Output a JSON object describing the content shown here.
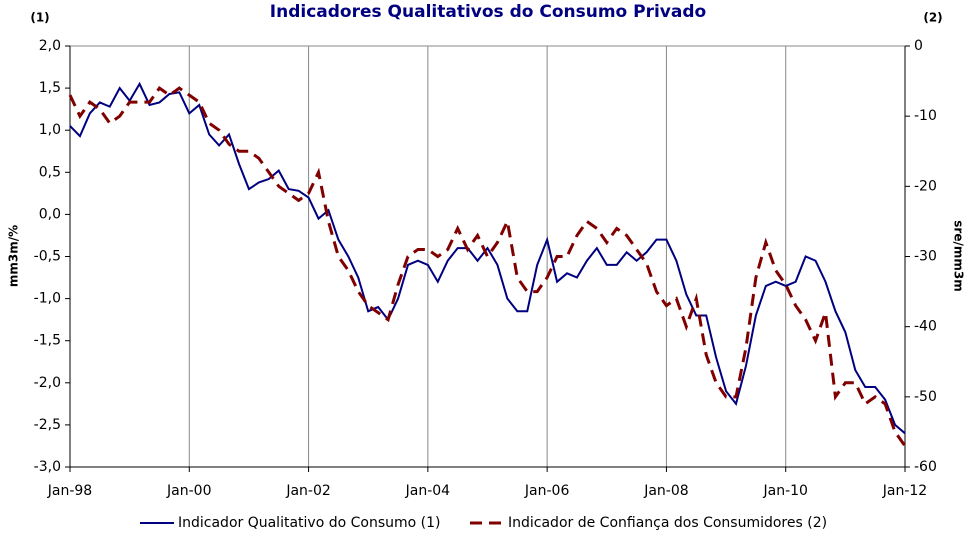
{
  "chart_data": {
    "type": "line",
    "title": "Indicadores Qualitativos do Consumo Privado",
    "left_axis_note": "(1)",
    "right_axis_note": "(2)",
    "ylabel": "mm3m/%",
    "y2label": "sre/mm3m",
    "x": [
      "Jan-98",
      "Mar-98",
      "May-98",
      "Jul-98",
      "Sep-98",
      "Nov-98",
      "Jan-99",
      "Mar-99",
      "May-99",
      "Jul-99",
      "Sep-99",
      "Nov-99",
      "Jan-00",
      "Mar-00",
      "May-00",
      "Jul-00",
      "Sep-00",
      "Nov-00",
      "Jan-01",
      "Mar-01",
      "May-01",
      "Jul-01",
      "Sep-01",
      "Nov-01",
      "Jan-02",
      "Mar-02",
      "May-02",
      "Jul-02",
      "Sep-02",
      "Nov-02",
      "Jan-03",
      "Mar-03",
      "May-03",
      "Jul-03",
      "Sep-03",
      "Nov-03",
      "Jan-04",
      "Mar-04",
      "May-04",
      "Jul-04",
      "Sep-04",
      "Nov-04",
      "Jan-05",
      "Mar-05",
      "May-05",
      "Jul-05",
      "Sep-05",
      "Nov-05",
      "Jan-06",
      "Mar-06",
      "May-06",
      "Jul-06",
      "Sep-06",
      "Nov-06",
      "Jan-07",
      "Mar-07",
      "May-07",
      "Jul-07",
      "Sep-07",
      "Nov-07",
      "Jan-08",
      "Mar-08",
      "May-08",
      "Jul-08",
      "Sep-08",
      "Nov-08",
      "Jan-09",
      "Mar-09",
      "May-09",
      "Jul-09",
      "Sep-09",
      "Nov-09",
      "Jan-10",
      "Mar-10",
      "May-10",
      "Jul-10",
      "Sep-10",
      "Nov-10",
      "Jan-11",
      "Mar-11",
      "May-11",
      "Jul-11",
      "Sep-11",
      "Nov-11",
      "Jan-12"
    ],
    "xticks": [
      "Jan-98",
      "Jan-00",
      "Jan-02",
      "Jan-04",
      "Jan-06",
      "Jan-08",
      "Jan-10",
      "Jan-12"
    ],
    "series": [
      {
        "name": "Indicador Qualitativo do Consumo (1)",
        "color": "#000080",
        "axis": "y",
        "dashed": false,
        "values": [
          1.05,
          0.93,
          1.2,
          1.33,
          1.28,
          1.5,
          1.35,
          1.55,
          1.3,
          1.33,
          1.43,
          1.45,
          1.2,
          1.3,
          0.95,
          0.82,
          0.95,
          0.6,
          0.3,
          0.38,
          0.42,
          0.52,
          0.3,
          0.28,
          0.2,
          -0.05,
          0.05,
          -0.3,
          -0.5,
          -0.75,
          -1.15,
          -1.1,
          -1.25,
          -1.0,
          -0.6,
          -0.55,
          -0.6,
          -0.8,
          -0.55,
          -0.4,
          -0.4,
          -0.55,
          -0.4,
          -0.6,
          -1.0,
          -1.15,
          -1.15,
          -0.6,
          -0.3,
          -0.8,
          -0.7,
          -0.75,
          -0.55,
          -0.4,
          -0.6,
          -0.6,
          -0.45,
          -0.55,
          -0.45,
          -0.3,
          -0.3,
          -0.55,
          -0.95,
          -1.2,
          -1.2,
          -1.7,
          -2.1,
          -2.25,
          -1.8,
          -1.2,
          -0.85,
          -0.8,
          -0.85,
          -0.8,
          -0.5,
          -0.55,
          -0.8,
          -1.15,
          -1.4,
          -1.85,
          -2.05,
          -2.05,
          -2.2,
          -2.5,
          -2.6
        ]
      },
      {
        "name": "Indicador de Confiança dos Consumidores (2)",
        "color": "#800000",
        "axis": "y2",
        "dashed": true,
        "values": [
          -7,
          -10,
          -8,
          -9,
          -11,
          -10,
          -8,
          -8,
          -8,
          -6,
          -7,
          -6,
          -7,
          -8,
          -11,
          -12,
          -14,
          -15,
          -15,
          -16,
          -18,
          -20,
          -21,
          -22,
          -21,
          -18,
          -25,
          -30,
          -32,
          -35,
          -37,
          -38,
          -39,
          -34,
          -30,
          -29,
          -29,
          -30,
          -29,
          -26,
          -29,
          -27,
          -30,
          -28,
          -25,
          -33,
          -35,
          -35,
          -33,
          -30,
          -30,
          -27,
          -25,
          -26,
          -28,
          -26,
          -27,
          -29,
          -31,
          -35,
          -37,
          -36,
          -40,
          -36,
          -44,
          -48,
          -50,
          -50,
          -43,
          -33,
          -28,
          -32,
          -34,
          -37,
          -39,
          -42,
          -38,
          -50,
          -48,
          -48,
          -51,
          -50,
          -51,
          -55,
          -57
        ]
      }
    ],
    "ylim": [
      -3,
      2
    ],
    "yticks": [
      {
        "value": -3,
        "label": "-3,0"
      },
      {
        "value": -2.5,
        "label": "-2,5"
      },
      {
        "value": -2,
        "label": "-2,0"
      },
      {
        "value": -1.5,
        "label": "-1,5"
      },
      {
        "value": -1,
        "label": "-1,0"
      },
      {
        "value": -0.5,
        "label": "-0,5"
      },
      {
        "value": 0,
        "label": "0,0"
      },
      {
        "value": 0.5,
        "label": "0,5"
      },
      {
        "value": 1,
        "label": "1,0"
      },
      {
        "value": 1.5,
        "label": "1,5"
      },
      {
        "value": 2,
        "label": "2,0"
      }
    ],
    "y2lim": [
      -60,
      0
    ],
    "y2ticks": [
      -60,
      -50,
      -40,
      -30,
      -20,
      -10,
      0
    ],
    "grid": "x"
  }
}
